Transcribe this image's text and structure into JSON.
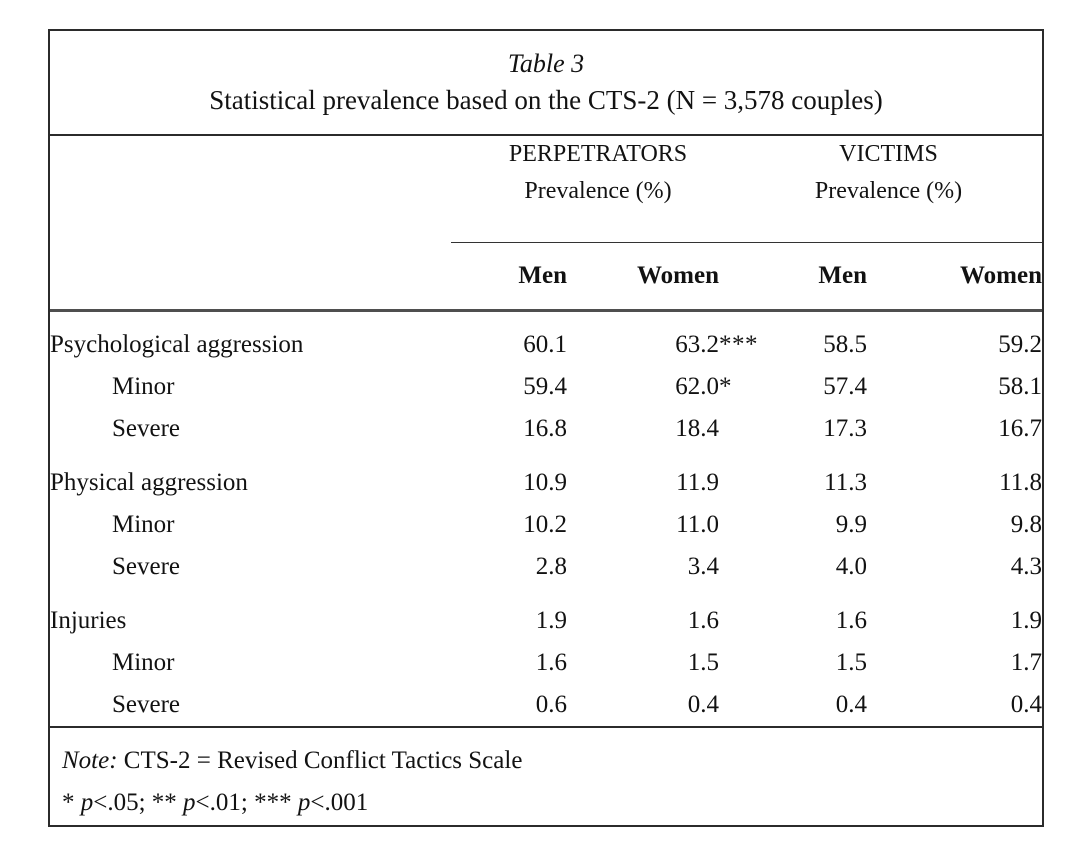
{
  "colors": {
    "text": "#121212",
    "rule": "#2b2b2b",
    "background": "#ffffff"
  },
  "table": {
    "caption_line1": "Table 3",
    "caption_line2": "Statistical prevalence based on the CTS-2 (N = 3,578 couples)",
    "column_groups": [
      {
        "title": "PERPETRATORS",
        "subtitle": "Prevalence (%)"
      },
      {
        "title": "VICTIMS",
        "subtitle": "Prevalence (%)"
      }
    ],
    "column_headers": [
      "Men",
      "Women",
      "Men",
      "Women"
    ],
    "rows": [
      {
        "label": "Psychological aggression",
        "indent": false,
        "block_start": true,
        "values": [
          {
            "num": "60.1",
            "stars": ""
          },
          {
            "num": "63.2",
            "stars": "***"
          },
          {
            "num": "58.5",
            "stars": ""
          },
          {
            "num": "59.2",
            "stars": ""
          }
        ]
      },
      {
        "label": "Minor",
        "indent": true,
        "block_start": false,
        "values": [
          {
            "num": "59.4",
            "stars": ""
          },
          {
            "num": "62.0",
            "stars": "*"
          },
          {
            "num": "57.4",
            "stars": ""
          },
          {
            "num": "58.1",
            "stars": ""
          }
        ]
      },
      {
        "label": "Severe",
        "indent": true,
        "block_start": false,
        "values": [
          {
            "num": "16.8",
            "stars": ""
          },
          {
            "num": "18.4",
            "stars": ""
          },
          {
            "num": "17.3",
            "stars": ""
          },
          {
            "num": "16.7",
            "stars": ""
          }
        ]
      },
      {
        "label": "Physical aggression",
        "indent": false,
        "block_start": true,
        "values": [
          {
            "num": "10.9",
            "stars": ""
          },
          {
            "num": "11.9",
            "stars": ""
          },
          {
            "num": "11.3",
            "stars": ""
          },
          {
            "num": "11.8",
            "stars": ""
          }
        ]
      },
      {
        "label": "Minor",
        "indent": true,
        "block_start": false,
        "values": [
          {
            "num": "10.2",
            "stars": ""
          },
          {
            "num": "11.0",
            "stars": ""
          },
          {
            "num": "9.9",
            "stars": ""
          },
          {
            "num": "9.8",
            "stars": ""
          }
        ]
      },
      {
        "label": "Severe",
        "indent": true,
        "block_start": false,
        "values": [
          {
            "num": "2.8",
            "stars": ""
          },
          {
            "num": "3.4",
            "stars": ""
          },
          {
            "num": "4.0",
            "stars": ""
          },
          {
            "num": "4.3",
            "stars": ""
          }
        ]
      },
      {
        "label": "Injuries",
        "indent": false,
        "block_start": true,
        "values": [
          {
            "num": "1.9",
            "stars": ""
          },
          {
            "num": "1.6",
            "stars": ""
          },
          {
            "num": "1.6",
            "stars": ""
          },
          {
            "num": "1.9",
            "stars": ""
          }
        ]
      },
      {
        "label": "Minor",
        "indent": true,
        "block_start": false,
        "values": [
          {
            "num": "1.6",
            "stars": ""
          },
          {
            "num": "1.5",
            "stars": ""
          },
          {
            "num": "1.5",
            "stars": ""
          },
          {
            "num": "1.7",
            "stars": ""
          }
        ]
      },
      {
        "label": "Severe",
        "indent": true,
        "block_start": false,
        "values": [
          {
            "num": "0.6",
            "stars": ""
          },
          {
            "num": "0.4",
            "stars": ""
          },
          {
            "num": "0.4",
            "stars": ""
          },
          {
            "num": "0.4",
            "stars": ""
          }
        ]
      }
    ],
    "note": {
      "prefix": "Note:",
      "text": " CTS-2 = Revised Conflict Tactics Scale",
      "significance_segments": [
        {
          "text": "* ",
          "italic": false
        },
        {
          "text": "p",
          "italic": true
        },
        {
          "text": "<.05; ** ",
          "italic": false
        },
        {
          "text": "p",
          "italic": true
        },
        {
          "text": "<.01; *** ",
          "italic": false
        },
        {
          "text": "p",
          "italic": true
        },
        {
          "text": "<.001",
          "italic": false
        }
      ]
    }
  }
}
